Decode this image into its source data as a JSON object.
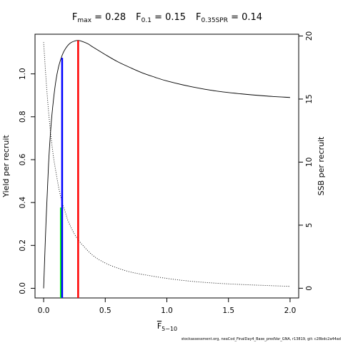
{
  "chart_data": {
    "type": "line",
    "title": {
      "parts": [
        {
          "base": "F",
          "sub": "max",
          "value": " = 0.28"
        },
        {
          "base": "F",
          "sub": "0.1",
          "value": " = 0.15"
        },
        {
          "base": "F",
          "sub": "0.35SPR",
          "value": " = 0.14"
        }
      ]
    },
    "xlabel": {
      "base": "F",
      "sub": "5−10"
    },
    "ylabel_left": "Yield per recruit",
    "ylabel_right": "SSB per recruit",
    "xlim": [
      -0.07,
      2.07
    ],
    "ylim_left": [
      -0.045,
      1.185
    ],
    "ylim_right": [
      -0.77,
      20.14
    ],
    "x_ticks": [
      0.0,
      0.5,
      1.0,
      1.5,
      2.0
    ],
    "x_tick_labels": [
      "0.0",
      "0.5",
      "1.0",
      "1.5",
      "2.0"
    ],
    "y_left_ticks": [
      0.0,
      0.2,
      0.4,
      0.6,
      0.8,
      1.0
    ],
    "y_left_tick_labels": [
      "0.0",
      "0.2",
      "0.4",
      "0.6",
      "0.8",
      "1.0"
    ],
    "y_right_ticks": [
      0,
      5,
      10,
      15,
      20
    ],
    "y_right_tick_labels": [
      "0",
      "5",
      "10",
      "15",
      "20"
    ],
    "grid": false,
    "series": [
      {
        "axis": "left",
        "style": "solid",
        "x": [
          0.0,
          0.02,
          0.04,
          0.06,
          0.08,
          0.1,
          0.12,
          0.14,
          0.16,
          0.18,
          0.2,
          0.22,
          0.25,
          0.28,
          0.32,
          0.36,
          0.4,
          0.5,
          0.6,
          0.7,
          0.8,
          0.9,
          1.0,
          1.2,
          1.4,
          1.6,
          1.8,
          2.0
        ],
        "y": [
          0.0,
          0.32,
          0.58,
          0.76,
          0.88,
          0.97,
          1.03,
          1.07,
          1.1,
          1.12,
          1.135,
          1.145,
          1.153,
          1.156,
          1.15,
          1.14,
          1.125,
          1.09,
          1.057,
          1.03,
          1.005,
          0.985,
          0.967,
          0.94,
          0.92,
          0.907,
          0.897,
          0.89
        ]
      },
      {
        "axis": "right",
        "style": "dotted",
        "x": [
          0.0,
          0.02,
          0.04,
          0.06,
          0.08,
          0.1,
          0.12,
          0.14,
          0.16,
          0.18,
          0.2,
          0.25,
          0.3,
          0.4,
          0.5,
          0.6,
          0.7,
          0.8,
          1.0,
          1.2,
          1.4,
          1.6,
          1.8,
          2.0
        ],
        "y": [
          19.5,
          16.5,
          14.0,
          12.0,
          10.4,
          9.2,
          8.1,
          7.2,
          6.5,
          5.9,
          5.3,
          4.3,
          3.6,
          2.6,
          2.0,
          1.6,
          1.3,
          1.1,
          0.78,
          0.55,
          0.4,
          0.3,
          0.22,
          0.15
        ]
      }
    ],
    "reference_lines": [
      {
        "name": "F0.35SPR",
        "x": 0.14,
        "axis": "right",
        "y_top": 6.4,
        "color": "#00ff00"
      },
      {
        "name": "F0.1",
        "x": 0.15,
        "axis": "left",
        "y_top": 1.075,
        "color": "#0000ff"
      },
      {
        "name": "Fmax",
        "x": 0.28,
        "axis": "left",
        "y_top": 1.156,
        "color": "#ff0000"
      }
    ]
  },
  "footer": "stockassessment.org, neaCod_FinalDay4_Base_predVar_GNA, r13819, git: c28bdc2a44ad"
}
